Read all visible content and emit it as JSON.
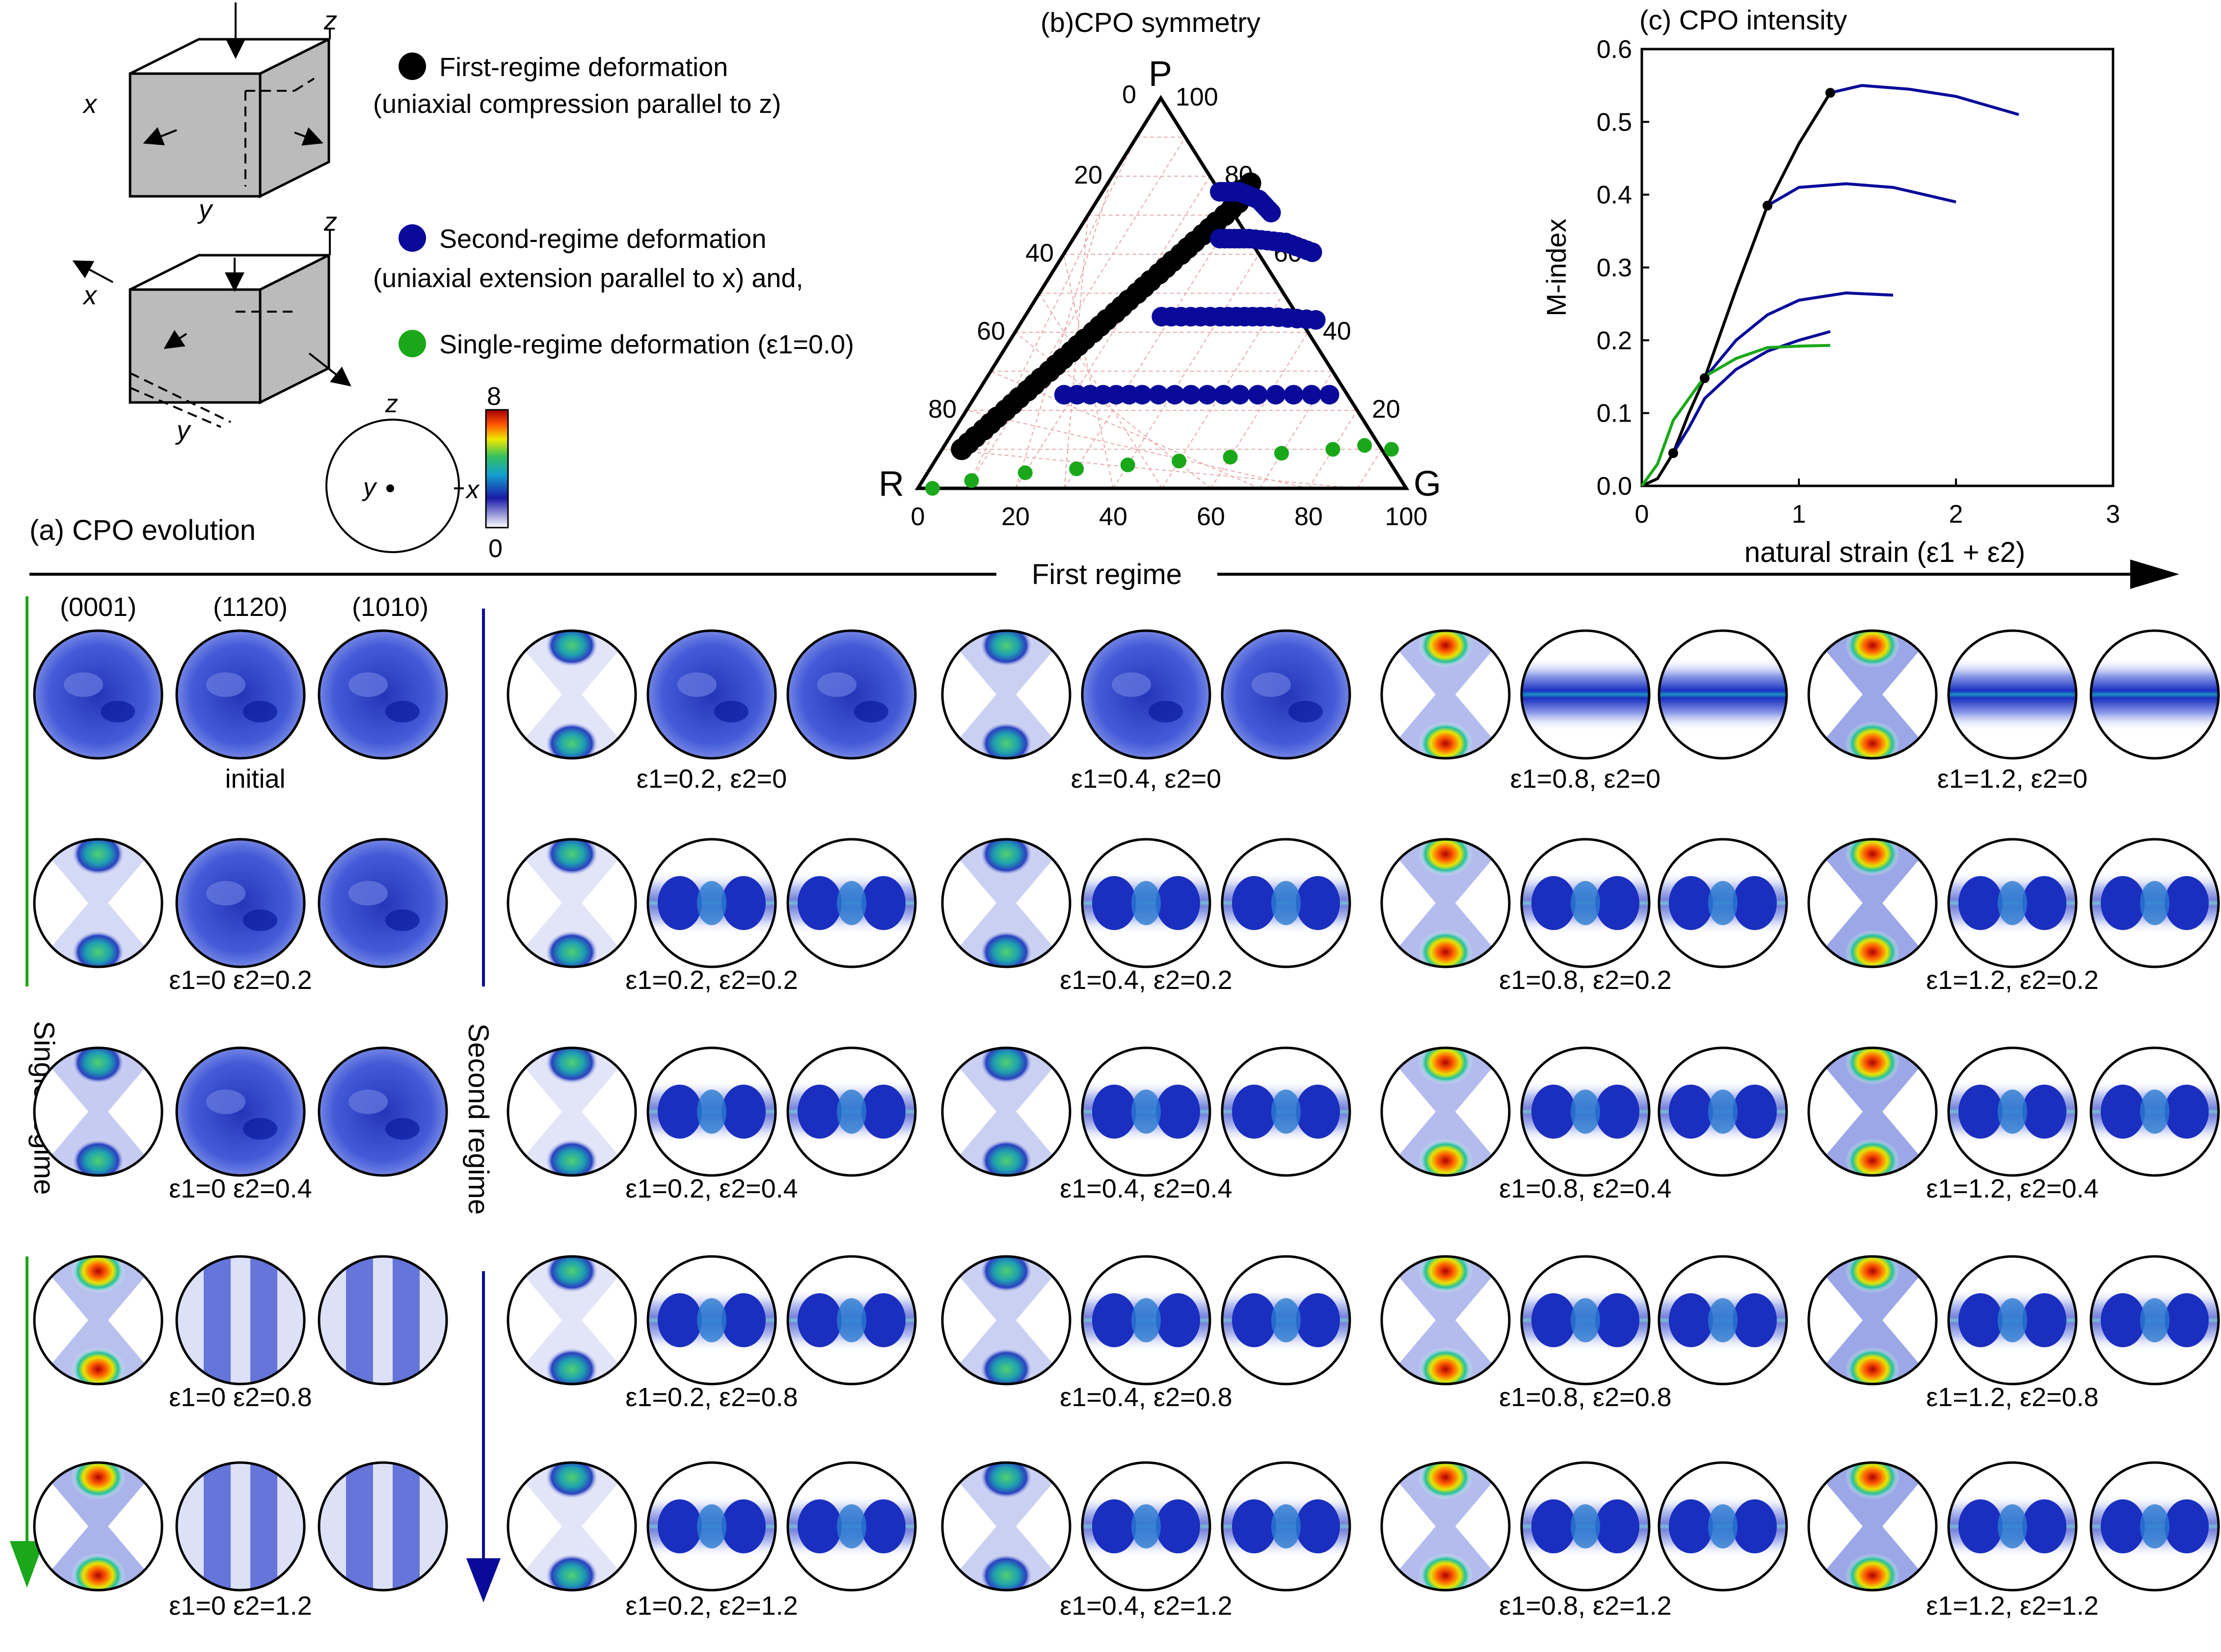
{
  "legend": {
    "first": "First-regime deformation",
    "first_sub": "(uniaxial compression parallel to z)",
    "second": "Second-regime deformation",
    "second_sub": "(uniaxial extension parallel to x) and,",
    "single": "Single-regime deformation (ε1=0.0)",
    "colors": {
      "first": "#000000",
      "second": "#0a0a9a",
      "single": "#1aa81a"
    }
  },
  "axes_labels": {
    "x": "x",
    "y": "y",
    "z": "z"
  },
  "colorbar": {
    "max": "8",
    "min": "0"
  },
  "panel_a_title": "(a) CPO evolution",
  "panel_b_title": "(b)CPO symmetry",
  "panel_c_title": "(c) CPO intensity",
  "arrow_labels": {
    "first": "First regime",
    "single": "Single regime",
    "second": "Second regime"
  },
  "col_headers": [
    "(0001)",
    "(1120)",
    "(1010)"
  ],
  "initial_label": "initial",
  "strain_labels": {
    "single": [
      "ε1=0 ε2=0.2",
      "ε1=0 ε2=0.4",
      "ε1=0 ε2=0.8",
      "ε1=0 ε2=1.2"
    ],
    "row0": [
      "ε1=0.2, ε2=0",
      "ε1=0.4, ε2=0",
      "ε1=0.8, ε2=0",
      "ε1=1.2, ε2=0"
    ],
    "row1": [
      "ε1=0.2, ε2=0.2",
      "ε1=0.4, ε2=0.2",
      "ε1=0.8, ε2=0.2",
      "ε1=1.2, ε2=0.2"
    ],
    "row2": [
      "ε1=0.2, ε2=0.4",
      "ε1=0.4, ε2=0.4",
      "ε1=0.8, ε2=0.4",
      "ε1=1.2, ε2=0.4"
    ],
    "row3": [
      "ε1=0.2, ε2=0.8",
      "ε1=0.4, ε2=0.8",
      "ε1=0.8, ε2=0.8",
      "ε1=1.2, ε2=0.8"
    ],
    "row4": [
      "ε1=0.2, ε2=1.2",
      "ε1=0.4, ε2=1.2",
      "ε1=0.8, ε2=1.2",
      "ε1=1.2, ε2=1.2"
    ]
  },
  "ternary": {
    "vertices": {
      "top": "P",
      "left": "R",
      "right": "G"
    },
    "ticks": [
      "0",
      "20",
      "40",
      "60",
      "80",
      "100"
    ],
    "first": [
      [
        10,
        4
      ],
      [
        15,
        6
      ],
      [
        20,
        8
      ],
      [
        25,
        10
      ],
      [
        30,
        12
      ],
      [
        35,
        14
      ],
      [
        40,
        16
      ],
      [
        45,
        18
      ],
      [
        50,
        20
      ],
      [
        55,
        22
      ],
      [
        60,
        24
      ],
      [
        65,
        26
      ],
      [
        70,
        28
      ],
      [
        75,
        28
      ]
    ],
    "second": [
      [
        [
          76,
          24
        ],
        [
          76,
          28
        ],
        [
          74,
          33
        ],
        [
          70,
          38
        ]
      ],
      [
        [
          64,
          30
        ],
        [
          64,
          36
        ],
        [
          63,
          44
        ],
        [
          60,
          52
        ]
      ],
      [
        [
          44,
          28
        ],
        [
          44,
          40
        ],
        [
          44,
          50
        ],
        [
          43,
          62
        ]
      ],
      [
        [
          24,
          18
        ],
        [
          24,
          34
        ],
        [
          24,
          54
        ],
        [
          24,
          76
        ]
      ]
    ],
    "single": [
      [
        0,
        3
      ],
      [
        2,
        10
      ],
      [
        4,
        20
      ],
      [
        5,
        30
      ],
      [
        6,
        40
      ],
      [
        7,
        50
      ],
      [
        8,
        60
      ],
      [
        9,
        70
      ],
      [
        10,
        80
      ],
      [
        11,
        86
      ],
      [
        10,
        92
      ]
    ]
  },
  "chart_data": {
    "type": "line",
    "title": "(c) CPO intensity",
    "xlabel": "natural strain (ε1 + ε2)",
    "ylabel": "M-index",
    "xlim": [
      0,
      3
    ],
    "ylim": [
      0,
      0.6
    ],
    "xticks": [
      "0",
      "1",
      "2",
      "3"
    ],
    "yticks": [
      "0.0",
      "0.1",
      "0.2",
      "0.3",
      "0.4",
      "0.5",
      "0.6"
    ],
    "series": [
      {
        "color": "#000000",
        "x": [
          0,
          0.1,
          0.2,
          0.3,
          0.4,
          0.6,
          0.8,
          1.0,
          1.2
        ],
        "y": [
          0,
          0.01,
          0.045,
          0.1,
          0.148,
          0.27,
          0.385,
          0.47,
          0.54
        ]
      },
      {
        "color": "#0a0a9a",
        "x": [
          1.2,
          1.4,
          1.7,
          2.0,
          2.4
        ],
        "y": [
          0.54,
          0.55,
          0.545,
          0.535,
          0.51
        ]
      },
      {
        "color": "#0a0a9a",
        "x": [
          0.8,
          1.0,
          1.3,
          1.6,
          2.0
        ],
        "y": [
          0.385,
          0.41,
          0.415,
          0.41,
          0.39
        ]
      },
      {
        "color": "#0a0a9a",
        "x": [
          0.4,
          0.6,
          0.8,
          1.0,
          1.3,
          1.6
        ],
        "y": [
          0.148,
          0.2,
          0.235,
          0.255,
          0.265,
          0.262
        ]
      },
      {
        "color": "#0a0a9a",
        "x": [
          0.2,
          0.3,
          0.4,
          0.6,
          0.8,
          1.0,
          1.2
        ],
        "y": [
          0.045,
          0.08,
          0.12,
          0.16,
          0.185,
          0.2,
          0.212
        ]
      },
      {
        "color": "#1aa81a",
        "x": [
          0,
          0.1,
          0.2,
          0.4,
          0.6,
          0.8,
          1.0,
          1.2
        ],
        "y": [
          0,
          0.03,
          0.09,
          0.15,
          0.175,
          0.19,
          0.192,
          0.193
        ]
      }
    ],
    "markers": {
      "x": [
        0.2,
        0.4,
        0.8,
        1.2
      ],
      "y": [
        0.045,
        0.148,
        0.385,
        0.54
      ]
    }
  }
}
